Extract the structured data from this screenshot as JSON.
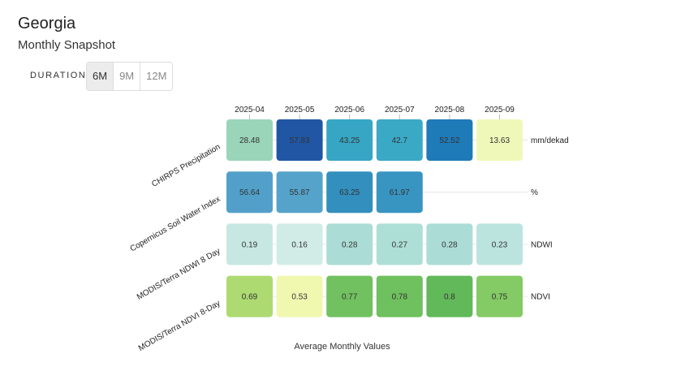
{
  "header": {
    "title": "Georgia",
    "subtitle": "Monthly Snapshot"
  },
  "duration": {
    "label": "DURATION",
    "options": [
      "6M",
      "9M",
      "12M"
    ],
    "selected": "6M"
  },
  "chart_data": {
    "type": "heatmap",
    "xlabel": "Average Monthly Values",
    "x": [
      "2025-04",
      "2025-05",
      "2025-06",
      "2025-07",
      "2025-08",
      "2025-09"
    ],
    "rows": [
      {
        "name": "CHIRPS Precipitation",
        "unit": "mm/dekad",
        "values": [
          28.48,
          57.83,
          43.25,
          42.7,
          52.52,
          13.63
        ],
        "colors": [
          "#9ad5b9",
          "#2156a4",
          "#37a6c4",
          "#3aa9c5",
          "#1f7ab8",
          "#f0f8b9"
        ]
      },
      {
        "name": "Copernicus Soil Water Index",
        "unit": "%",
        "values": [
          56.64,
          55.87,
          63.25,
          61.97,
          null,
          null
        ],
        "colors": [
          "#52a0c9",
          "#55a3ca",
          "#338fbe",
          "#3894c1",
          null,
          null
        ]
      },
      {
        "name": "MODIS/Terra NDWI 8 Day",
        "unit": "NDWI",
        "values": [
          0.19,
          0.16,
          0.28,
          0.27,
          0.28,
          0.23
        ],
        "colors": [
          "#c7e8e2",
          "#d1ece7",
          "#abddd6",
          "#aedfd7",
          "#abddd6",
          "#bce4de"
        ]
      },
      {
        "name": "MODIS/Terra NDVI 8-Day",
        "unit": "NDVI",
        "values": [
          0.69,
          0.53,
          0.77,
          0.78,
          0.8,
          0.75
        ],
        "colors": [
          "#addb71",
          "#f0f8b0",
          "#72c160",
          "#6fc05e",
          "#62b95a",
          "#84ca65"
        ]
      }
    ]
  }
}
